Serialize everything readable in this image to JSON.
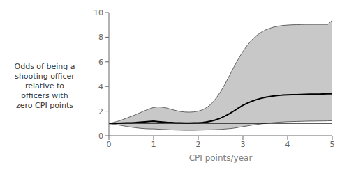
{
  "chart_data": {
    "type": "line",
    "xlabel": "CPI points/year",
    "ylabel": "Odds of being a\nshooting officer\nrelative to\nofficers with\nzero CPI points",
    "x": [
      0.0,
      0.1,
      0.2,
      0.3,
      0.4,
      0.5,
      0.6,
      0.7,
      0.8,
      0.9,
      1.0,
      1.1,
      1.2,
      1.3,
      1.4,
      1.5,
      1.6,
      1.7,
      1.8,
      1.9,
      2.0,
      2.1,
      2.2,
      2.3,
      2.4,
      2.5,
      2.6,
      2.7,
      2.8,
      2.9,
      3.0,
      3.1,
      3.2,
      3.3,
      3.4,
      3.5,
      3.6,
      3.7,
      3.8,
      3.9,
      4.0,
      4.1,
      4.2,
      4.3,
      4.4,
      4.5,
      4.6,
      4.7,
      4.8,
      4.9,
      5.0
    ],
    "values": [
      1.0,
      1.01,
      1.02,
      1.03,
      1.04,
      1.05,
      1.07,
      1.1,
      1.13,
      1.16,
      1.18,
      1.15,
      1.12,
      1.09,
      1.07,
      1.05,
      1.04,
      1.03,
      1.03,
      1.04,
      1.05,
      1.08,
      1.13,
      1.2,
      1.3,
      1.43,
      1.6,
      1.8,
      2.02,
      2.25,
      2.48,
      2.65,
      2.8,
      2.93,
      3.03,
      3.12,
      3.18,
      3.23,
      3.27,
      3.3,
      3.32,
      3.33,
      3.34,
      3.35,
      3.36,
      3.37,
      3.37,
      3.38,
      3.39,
      3.4,
      3.41
    ],
    "upper": [
      1.0,
      1.08,
      1.18,
      1.3,
      1.44,
      1.58,
      1.72,
      1.88,
      2.04,
      2.18,
      2.3,
      2.35,
      2.32,
      2.25,
      2.15,
      2.05,
      1.97,
      1.93,
      1.92,
      1.94,
      2.0,
      2.12,
      2.32,
      2.62,
      3.05,
      3.58,
      4.2,
      4.9,
      5.6,
      6.25,
      6.85,
      7.35,
      7.78,
      8.12,
      8.38,
      8.58,
      8.72,
      8.83,
      8.9,
      8.95,
      8.98,
      9.0,
      9.01,
      9.02,
      9.03,
      9.03,
      9.03,
      9.03,
      9.03,
      9.03,
      9.38
    ],
    "lower": [
      1.0,
      0.94,
      0.88,
      0.82,
      0.76,
      0.7,
      0.65,
      0.61,
      0.58,
      0.56,
      0.56,
      0.54,
      0.52,
      0.5,
      0.48,
      0.47,
      0.46,
      0.45,
      0.45,
      0.45,
      0.46,
      0.47,
      0.48,
      0.49,
      0.5,
      0.52,
      0.55,
      0.58,
      0.62,
      0.68,
      0.74,
      0.8,
      0.86,
      0.91,
      0.96,
      1.0,
      1.04,
      1.07,
      1.1,
      1.12,
      1.14,
      1.15,
      1.16,
      1.17,
      1.18,
      1.19,
      1.19,
      1.2,
      1.2,
      1.21,
      1.22
    ],
    "hline": 1.0,
    "color": "#000000",
    "xlim": [
      0,
      5
    ],
    "ylim": [
      0,
      10
    ],
    "xticks": [
      0,
      1,
      2,
      3,
      4,
      5
    ],
    "yticks": [
      0,
      2,
      4,
      6,
      8,
      10
    ],
    "grid": false
  }
}
